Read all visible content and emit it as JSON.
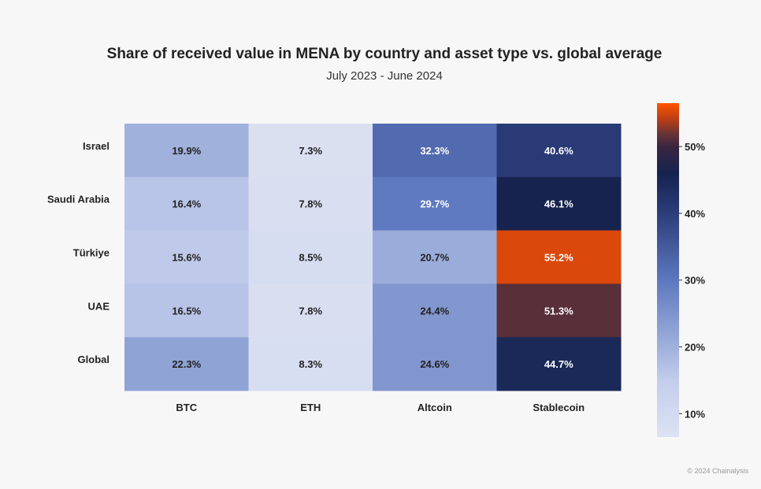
{
  "chart_data": {
    "type": "heatmap",
    "title": "Share of received value in MENA by country and asset type vs. global average",
    "subtitle": "July 2023 - June 2024",
    "rows": [
      "Israel",
      "Saudi Arabia",
      "Türkiye",
      "UAE",
      "Global"
    ],
    "columns": [
      "BTC",
      "ETH",
      "Altcoin",
      "Stablecoin"
    ],
    "values": [
      [
        19.9,
        7.3,
        32.3,
        40.6
      ],
      [
        16.4,
        7.8,
        29.7,
        46.1
      ],
      [
        15.6,
        8.5,
        20.7,
        55.2
      ],
      [
        16.5,
        7.8,
        24.4,
        51.3
      ],
      [
        22.3,
        8.3,
        24.6,
        44.7
      ]
    ],
    "value_suffix": "%",
    "colorbar": {
      "range": [
        6.5,
        56.5
      ],
      "ticks": [
        10,
        20,
        30,
        40,
        50
      ],
      "tick_suffix": "%",
      "stops": [
        {
          "value": 6.5,
          "color": "#dde2f2"
        },
        {
          "value": 15,
          "color": "#c3cdec"
        },
        {
          "value": 20,
          "color": "#9fb0dc"
        },
        {
          "value": 30,
          "color": "#5d78bf"
        },
        {
          "value": 40,
          "color": "#2c3d7a"
        },
        {
          "value": 46,
          "color": "#16234f"
        },
        {
          "value": 50,
          "color": "#3a2540"
        },
        {
          "value": 52,
          "color": "#6a3536"
        },
        {
          "value": 54,
          "color": "#b83c16"
        },
        {
          "value": 56.5,
          "color": "#ff5500"
        }
      ]
    },
    "text_color_dark": "#222222",
    "text_color_light": "#ffffff"
  },
  "footer": {
    "copyright": "© 2024 Chainalysis"
  }
}
